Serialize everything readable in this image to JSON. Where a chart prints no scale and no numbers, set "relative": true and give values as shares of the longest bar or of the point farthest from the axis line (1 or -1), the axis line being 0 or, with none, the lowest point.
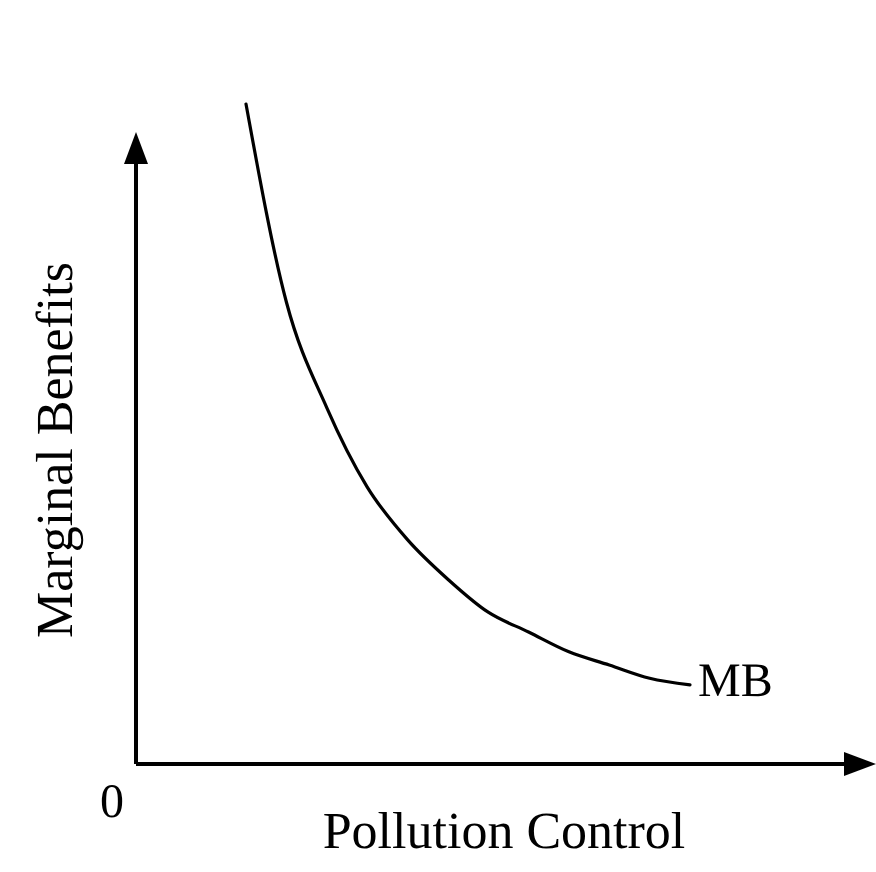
{
  "chart_data": {
    "type": "line",
    "xlabel": "Pollution Control",
    "ylabel": "Marginal Benefits",
    "relative": true,
    "categories": [
      null,
      null,
      null,
      null,
      null,
      null,
      null,
      null,
      null,
      null,
      null,
      null
    ],
    "series": [
      {
        "name": "MB",
        "color": "#000000",
        "values": [
          1.0,
          0.7,
          0.54,
          0.42,
          0.34,
          0.28,
          0.23,
          0.2,
          0.17,
          0.15,
          0.13,
          0.12
        ]
      }
    ],
    "annotations": [
      "0"
    ]
  }
}
